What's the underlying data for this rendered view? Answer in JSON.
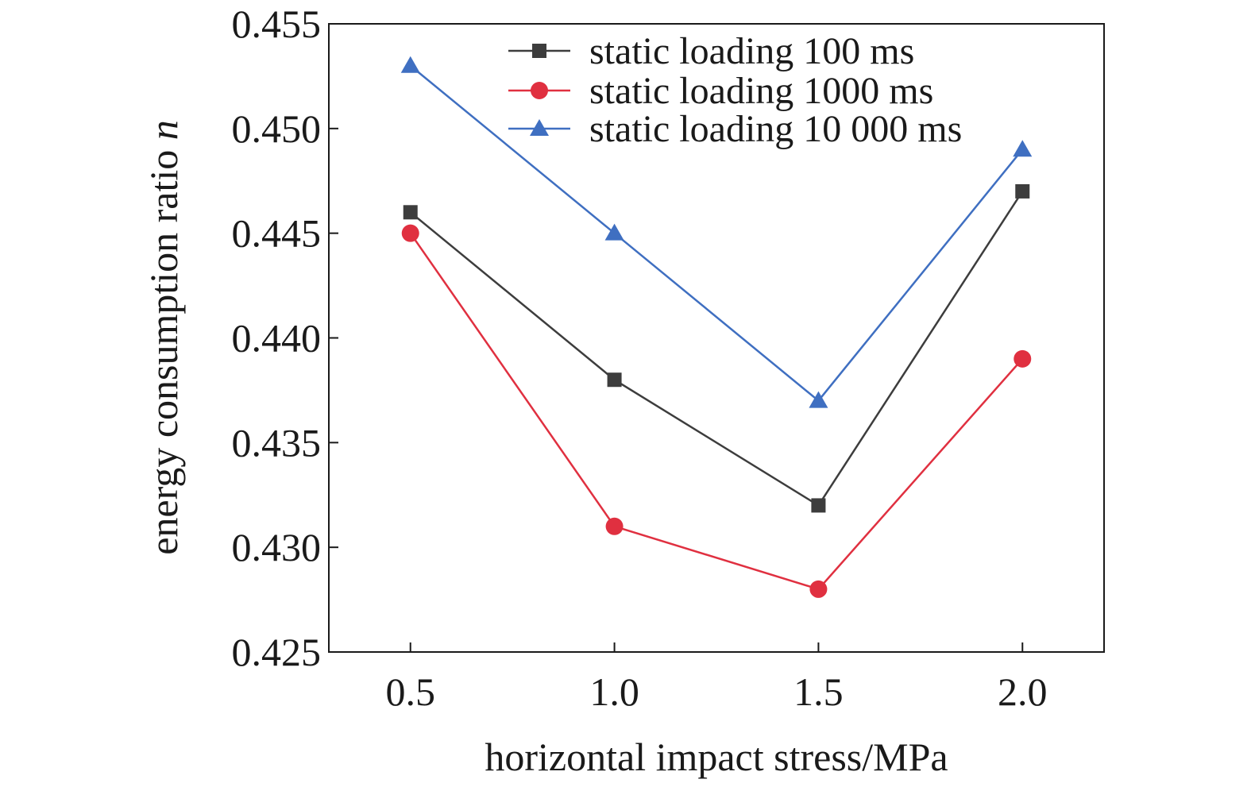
{
  "chart_data": {
    "type": "line",
    "title": "",
    "xlabel": "horizontal impact stress/MPa",
    "ylabel_main": "energy consumption ratio ",
    "ylabel_symbol": "n",
    "x": [
      0.5,
      1.0,
      1.5,
      2.0
    ],
    "x_tick_labels": [
      "0.5",
      "1.0",
      "1.5",
      "2.0"
    ],
    "xlim": [
      0.3,
      2.2
    ],
    "ylim": [
      0.425,
      0.455
    ],
    "y_ticks": [
      0.425,
      0.43,
      0.435,
      0.44,
      0.445,
      0.45,
      0.455
    ],
    "y_tick_labels": [
      "0.425",
      "0.430",
      "0.435",
      "0.440",
      "0.445",
      "0.450",
      "0.455"
    ],
    "grid": false,
    "legend_position": "top-right",
    "series": [
      {
        "name": "static loading 100 ms",
        "marker": "square",
        "color": "#3d3d3d",
        "values": [
          0.446,
          0.438,
          0.432,
          0.447
        ]
      },
      {
        "name": "static loading 1000 ms",
        "marker": "circle",
        "color": "#e03040",
        "values": [
          0.445,
          0.431,
          0.428,
          0.439
        ]
      },
      {
        "name": "static loading 10 000 ms",
        "marker": "triangle",
        "color": "#3f6fc1",
        "values": [
          0.453,
          0.445,
          0.437,
          0.449
        ]
      }
    ]
  }
}
